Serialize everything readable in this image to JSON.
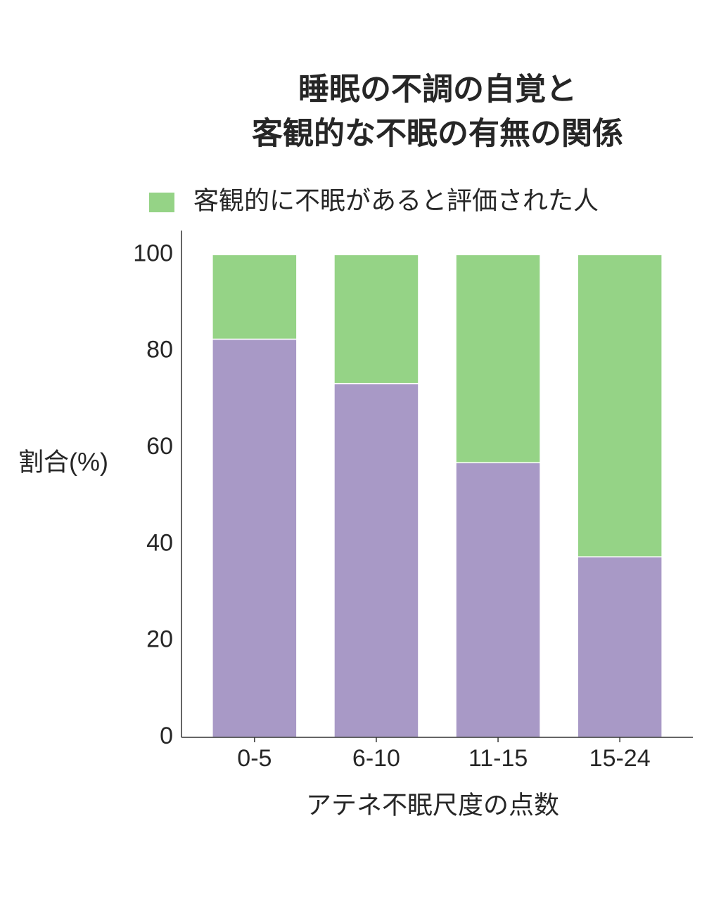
{
  "chart_data": {
    "type": "stacked_bar",
    "title": [
      "睡眠の不調の自覚と",
      "客観的な不眠の有無の関係"
    ],
    "x_label": "アテネ不眠尺度の点数",
    "y_label": "割合(%)",
    "categories": [
      "0-5",
      "6-10",
      "11-15",
      "15-24"
    ],
    "series": [
      {
        "color": "#a899c6",
        "values": [
          82.5,
          73.3,
          56.9,
          37.4
        ]
      },
      {
        "name": "客観的に不眠があると評価された人",
        "color": "#95d386",
        "values": [
          17.5,
          26.7,
          43.1,
          62.6
        ]
      }
    ],
    "ylim": [
      0,
      105
    ],
    "yticks": [
      0,
      20,
      40,
      60,
      80,
      100
    ],
    "grid": false,
    "legend": "top"
  }
}
